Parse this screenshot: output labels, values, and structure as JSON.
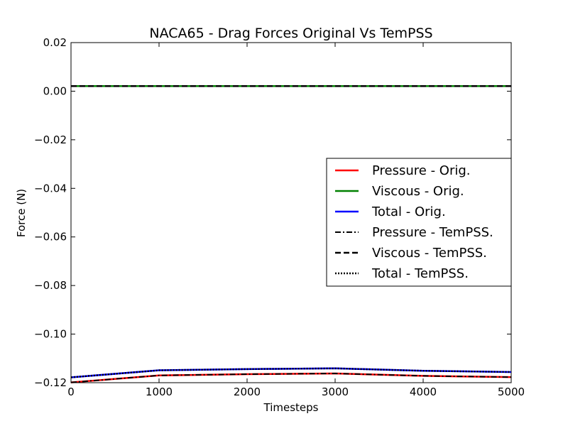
{
  "chart_data": {
    "type": "line",
    "title": "NACA65 - Drag Forces Original Vs TemPSS",
    "xlabel": "Timesteps",
    "ylabel": "Force (N)",
    "xlim": [
      0,
      5000
    ],
    "ylim": [
      -0.12,
      0.02
    ],
    "xticks": [
      0,
      1000,
      2000,
      3000,
      4000,
      5000
    ],
    "xtick_labels": [
      "0",
      "1000",
      "2000",
      "3000",
      "4000",
      "5000"
    ],
    "yticks": [
      0.02,
      0.0,
      -0.02,
      -0.04,
      -0.06,
      -0.08,
      -0.1,
      -0.12
    ],
    "ytick_labels": [
      "0.02",
      "0.00",
      "−0.02",
      "−0.04",
      "−0.06",
      "−0.08",
      "−0.10",
      "−0.12"
    ],
    "grid": false,
    "legend_position": "center-right",
    "x": [
      0,
      1000,
      2000,
      3000,
      4000,
      5000
    ],
    "series": [
      {
        "name": "Pressure - Orig.",
        "color": "#ff0000",
        "style": "solid",
        "values": [
          -0.1199,
          -0.117,
          -0.1165,
          -0.1162,
          -0.1172,
          -0.1177
        ]
      },
      {
        "name": "Viscous - Orig.",
        "color": "#008000",
        "style": "solid",
        "values": [
          0.0021,
          0.0021,
          0.0021,
          0.0021,
          0.0021,
          0.0021
        ]
      },
      {
        "name": "Total - Orig.",
        "color": "#0000ff",
        "style": "solid",
        "values": [
          -0.1178,
          -0.1149,
          -0.1144,
          -0.1141,
          -0.1151,
          -0.1156
        ]
      },
      {
        "name": "Pressure - TemPSS.",
        "color": "#000000",
        "style": "dashdot",
        "values": [
          -0.1199,
          -0.117,
          -0.1165,
          -0.1162,
          -0.1172,
          -0.1177
        ]
      },
      {
        "name": "Viscous - TemPSS.",
        "color": "#000000",
        "style": "dashed",
        "values": [
          0.0021,
          0.0021,
          0.0021,
          0.0021,
          0.0021,
          0.0021
        ]
      },
      {
        "name": "Total - TemPSS.",
        "color": "#000000",
        "style": "dotted",
        "values": [
          -0.1178,
          -0.1149,
          -0.1144,
          -0.1141,
          -0.1151,
          -0.1156
        ]
      }
    ]
  }
}
